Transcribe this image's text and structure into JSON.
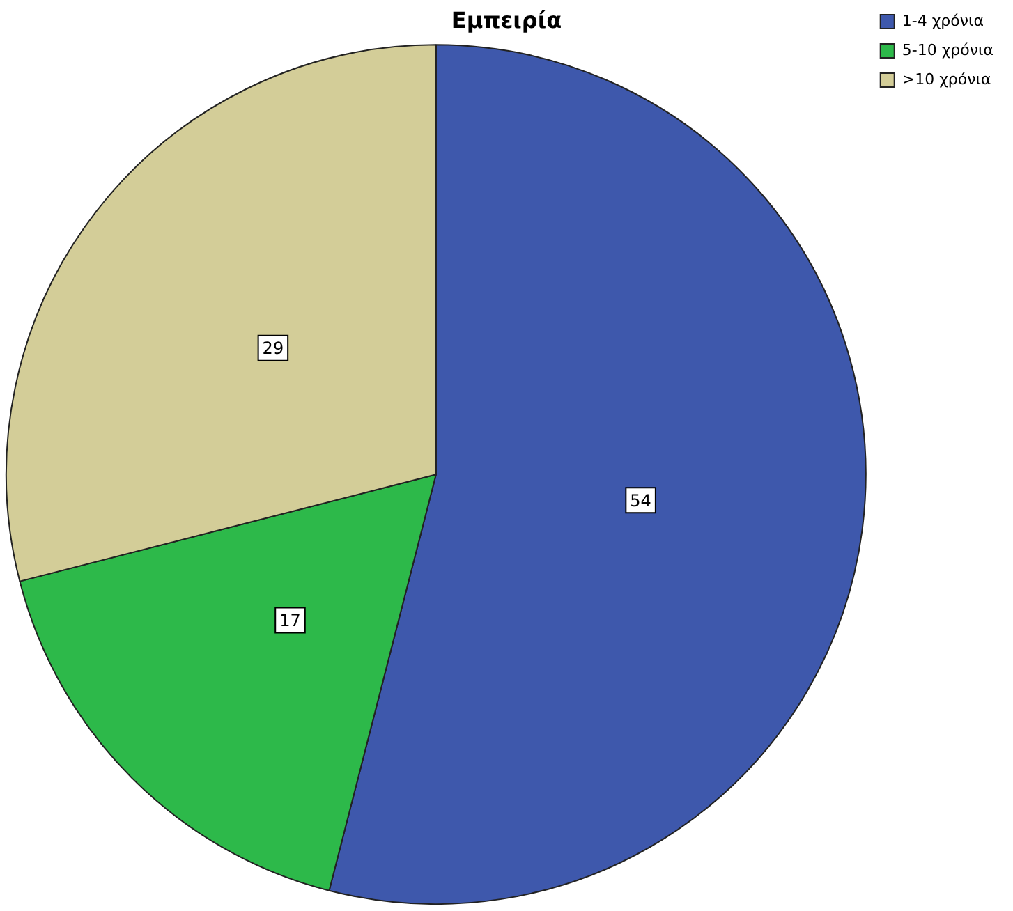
{
  "chart_data": {
    "type": "pie",
    "title": "Εμπειρία",
    "categories": [
      "1-4 χρόνια",
      "5-10 χρόνια",
      ">10 χρόνια"
    ],
    "values": [
      54,
      17,
      29
    ],
    "colors": [
      "#3e58ac",
      "#2db94a",
      "#d3cd98"
    ],
    "data_labels": true,
    "legend": "top right"
  }
}
